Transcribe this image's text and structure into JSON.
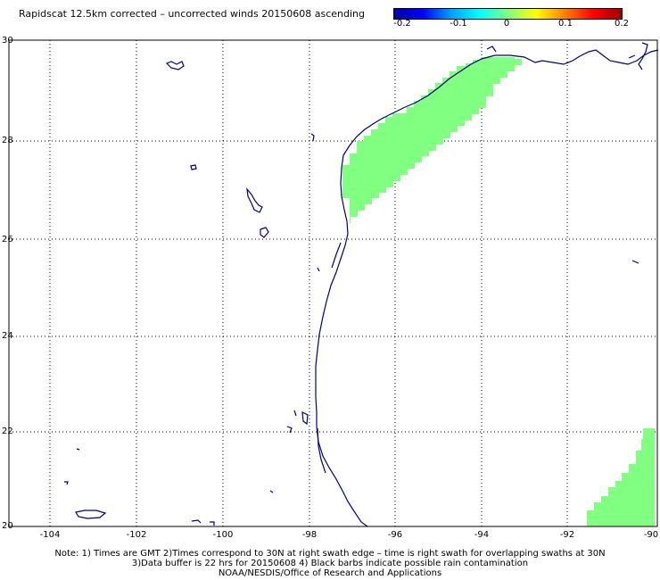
{
  "title": "Rapidscat 12.5km corrected – uncorrected winds 20150608 ascending",
  "colorbar": {
    "labels": [
      "-0.2",
      "-0.1",
      "0",
      "0.1",
      "0.2"
    ],
    "stops": [
      "#0000a0",
      "#0000ff",
      "#00a0ff",
      "#00ffff",
      "#80ff80",
      "#ffff00",
      "#ff8000",
      "#ff0000",
      "#a00000"
    ]
  },
  "map": {
    "lat_labels": [
      "30",
      "28",
      "26",
      "24",
      "22",
      "20"
    ],
    "lon_labels": [
      "-104",
      "-102",
      "-100",
      "-98",
      "-96",
      "-94",
      "-92",
      "-90"
    ],
    "lat_range": [
      20,
      30
    ],
    "lon_range": [
      -105,
      -90
    ],
    "swath_color": "#80ff80",
    "coast_color": "#000080",
    "grid": "dotted"
  },
  "notes": [
    "Note: 1) Times are GMT 2)Times correspond to 30N at right swath edge – time is right swath for overlapping swaths at 30N",
    "3)Data buffer is 22 hrs for 20150608 4) Black barbs indicate possible rain contamination",
    "NOAA/NESDIS/Office of Research and Applications"
  ]
}
